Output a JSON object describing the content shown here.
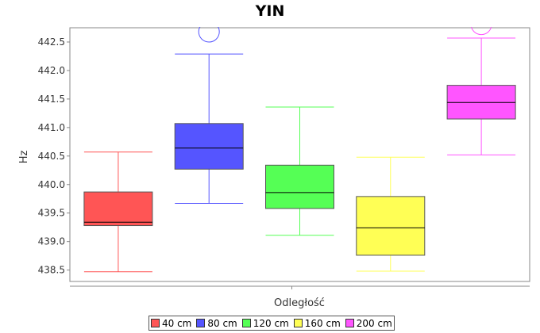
{
  "chart_data": {
    "type": "box",
    "title": "YIN",
    "xlabel": "Odległość",
    "ylabel": "Hz",
    "ylim": [
      438.3,
      442.75
    ],
    "yticks": [
      "438.5",
      "439.0",
      "439.5",
      "440.0",
      "440.5",
      "441.0",
      "441.5",
      "442.0",
      "442.5"
    ],
    "grid": false,
    "legend_position": "bottom",
    "series": [
      {
        "name": "40 cm",
        "color": "#ff5555",
        "whisker_low": 438.47,
        "q1": 439.28,
        "median": 439.34,
        "q3": 439.87,
        "whisker_high": 440.57,
        "outliers": []
      },
      {
        "name": "80 cm",
        "color": "#5555ff",
        "whisker_low": 439.67,
        "q1": 440.27,
        "median": 440.64,
        "q3": 441.07,
        "whisker_high": 442.29,
        "outliers": [
          442.68
        ]
      },
      {
        "name": "120 cm",
        "color": "#55ff55",
        "whisker_low": 439.11,
        "q1": 439.58,
        "median": 439.86,
        "q3": 440.34,
        "whisker_high": 441.36,
        "outliers": []
      },
      {
        "name": "160 cm",
        "color": "#ffff55",
        "whisker_low": 438.48,
        "q1": 438.76,
        "median": 439.24,
        "q3": 439.79,
        "whisker_high": 440.48,
        "outliers": []
      },
      {
        "name": "200 cm",
        "color": "#ff55ff",
        "whisker_low": 440.52,
        "q1": 441.15,
        "median": 441.44,
        "q3": 441.74,
        "whisker_high": 442.57,
        "outliers": [
          442.81
        ]
      }
    ]
  }
}
